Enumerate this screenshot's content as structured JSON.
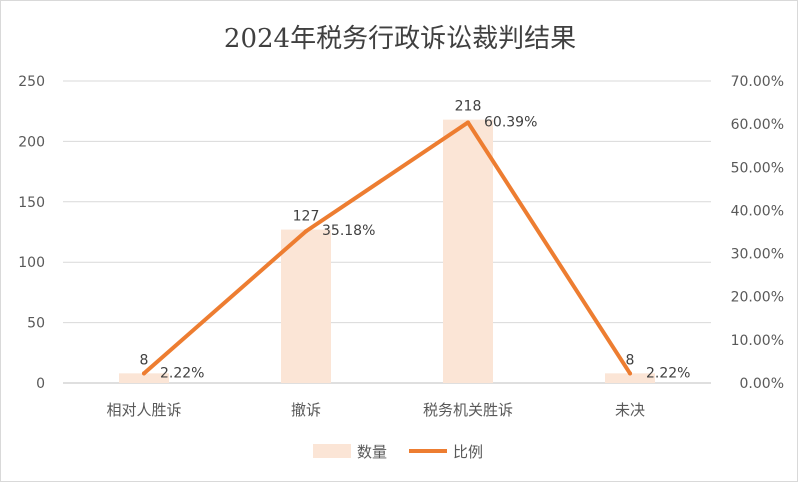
{
  "chart_data": {
    "type": "bar",
    "title": "2024年税务行政诉讼裁判结果",
    "categories": [
      "相对人胜诉",
      "撤诉",
      "税务机关胜诉",
      "未决"
    ],
    "series": [
      {
        "name": "数量",
        "kind": "bar",
        "axis": "left",
        "values": [
          8,
          127,
          218,
          8
        ],
        "labels": [
          "8",
          "127",
          "218",
          "8"
        ],
        "color": "#fbe5d6"
      },
      {
        "name": "比例",
        "kind": "line",
        "axis": "right",
        "values": [
          2.22,
          35.18,
          60.39,
          2.22
        ],
        "labels": [
          "2.22%",
          "35.18%",
          "60.39%",
          "2.22%"
        ],
        "color": "#ed7d31"
      }
    ],
    "y_left": {
      "ylim": [
        0,
        250
      ],
      "ticks": [
        "0",
        "50",
        "100",
        "150",
        "200",
        "250"
      ]
    },
    "y_right": {
      "ylim": [
        0,
        70
      ],
      "ticks": [
        "0.00%",
        "10.00%",
        "20.00%",
        "30.00%",
        "40.00%",
        "50.00%",
        "60.00%",
        "70.00%"
      ]
    },
    "xlabel": "",
    "ylabel": "",
    "grid": true,
    "legend_position": "bottom"
  }
}
